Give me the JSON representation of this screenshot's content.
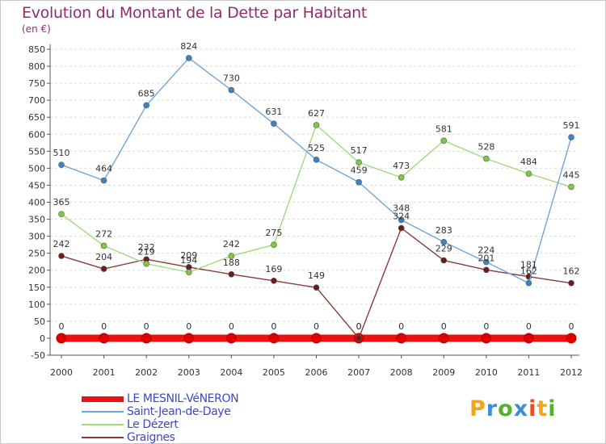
{
  "header": {
    "title": "Evolution du Montant de la Dette par Habitant",
    "unit": "(en €)"
  },
  "logo": {
    "letters": [
      "P",
      "r",
      "o",
      "x",
      "i",
      "t",
      "i"
    ],
    "colors": [
      "#f2a41a",
      "#3c8fd6",
      "#56b12f",
      "#3c8fd6",
      "#e84d1e",
      "#f2a41a",
      "#56b12f"
    ]
  },
  "colors": {
    "axis": "#555555",
    "grid": "#dddddd",
    "labels": "#333333",
    "background": "#ffffff"
  },
  "chart_data": {
    "type": "line",
    "title": "Evolution du Montant de la Dette par Habitant",
    "subtitle": "(en €)",
    "x": [
      "2000",
      "2001",
      "2002",
      "2003",
      "2004",
      "2005",
      "2006",
      "2007",
      "2008",
      "2009",
      "2010",
      "2011",
      "2012"
    ],
    "ylim": [
      -50,
      850
    ],
    "yticks": [
      -50,
      0,
      50,
      100,
      150,
      200,
      250,
      300,
      350,
      400,
      450,
      500,
      550,
      600,
      650,
      700,
      750,
      800,
      850
    ],
    "grid": "horizontal dashed",
    "legend_position": "bottom-left",
    "series": [
      {
        "name": "LE MESNIL-VéNERON",
        "color": "#ee1111",
        "marker": "#dd0000",
        "thick": true,
        "values": [
          0,
          0,
          0,
          0,
          0,
          0,
          0,
          0,
          0,
          0,
          0,
          0,
          0
        ]
      },
      {
        "name": "Saint-Jean-de-Daye",
        "color": "#6fa6d8",
        "marker": "#3b83c7",
        "thick": false,
        "values": [
          510,
          464,
          685,
          824,
          730,
          631,
          525,
          459,
          348,
          283,
          224,
          162,
          591
        ]
      },
      {
        "name": "Le Dézert",
        "color": "#9fdb7a",
        "marker": "#7cc943",
        "thick": false,
        "values": [
          365,
          272,
          219,
          194,
          242,
          275,
          627,
          517,
          473,
          581,
          528,
          484,
          445
        ]
      },
      {
        "name": "Graignes",
        "color": "#8a3a3a",
        "marker": "#6b1c1c",
        "thick": false,
        "values": [
          242,
          204,
          232,
          209,
          188,
          169,
          149,
          0,
          324,
          229,
          201,
          181,
          162
        ]
      }
    ]
  }
}
